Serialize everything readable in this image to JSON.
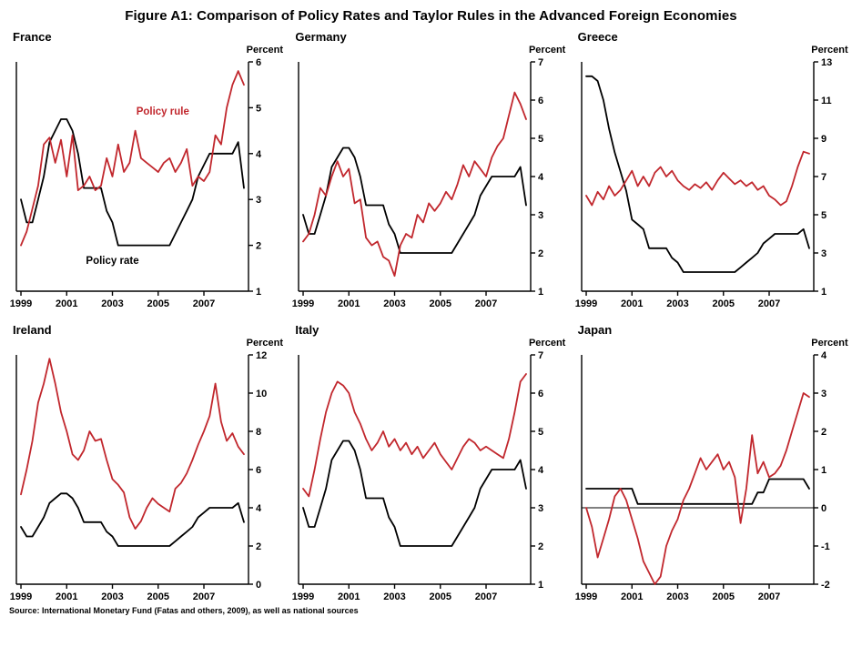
{
  "header": {
    "title": "Figure A1: Comparison of Policy Rates and Taylor Rules in the Advanced Foreign Economies"
  },
  "footer": {
    "source": "Source: International Monetary Fund (Fatas and others, 2009), as well as national sources"
  },
  "colors": {
    "policy_rate": "#000000",
    "policy_rule": "#c1272d"
  },
  "chart_data": [
    {
      "type": "line",
      "title": "France",
      "ylabel": "Percent",
      "ylim": [
        1,
        6
      ],
      "yticks": [
        1,
        2,
        3,
        4,
        5,
        6
      ],
      "xlim": [
        1998.8,
        2008.95
      ],
      "xticks": [
        1999,
        2001,
        2003,
        2005,
        2007
      ],
      "x_start": 1999,
      "x_step": 0.25,
      "series": [
        {
          "name": "Policy rate",
          "color": "#000000",
          "values": [
            3.0,
            2.5,
            2.5,
            3.0,
            3.5,
            4.25,
            4.5,
            4.75,
            4.75,
            4.5,
            4.0,
            3.25,
            3.25,
            3.25,
            3.25,
            2.75,
            2.5,
            2.0,
            2.0,
            2.0,
            2.0,
            2.0,
            2.0,
            2.0,
            2.0,
            2.0,
            2.0,
            2.25,
            2.5,
            2.75,
            3.0,
            3.5,
            3.75,
            4.0,
            4.0,
            4.0,
            4.0,
            4.0,
            4.25,
            3.25
          ]
        },
        {
          "name": "Policy rule",
          "color": "#c1272d",
          "values": [
            2.0,
            2.3,
            2.8,
            3.3,
            4.2,
            4.35,
            3.8,
            4.3,
            3.5,
            4.4,
            3.2,
            3.3,
            3.5,
            3.2,
            3.3,
            3.9,
            3.5,
            4.2,
            3.6,
            3.8,
            4.5,
            3.9,
            3.8,
            3.7,
            3.6,
            3.8,
            3.9,
            3.6,
            3.8,
            4.1,
            3.3,
            3.5,
            3.4,
            3.6,
            4.4,
            4.2,
            5.0,
            5.5,
            5.8,
            5.5
          ]
        }
      ],
      "annotations": [
        {
          "text": "Policy rule",
          "color": "#c1272d",
          "x": 2005.2,
          "y": 4.85
        },
        {
          "text": "Policy rate",
          "color": "#000000",
          "x": 2003.0,
          "y": 1.6
        }
      ]
    },
    {
      "type": "line",
      "title": "Germany",
      "ylabel": "Percent",
      "ylim": [
        1,
        7
      ],
      "yticks": [
        1,
        2,
        3,
        4,
        5,
        6,
        7
      ],
      "xlim": [
        1998.8,
        2008.95
      ],
      "xticks": [
        1999,
        2001,
        2003,
        2005,
        2007
      ],
      "x_start": 1999,
      "x_step": 0.25,
      "series": [
        {
          "name": "Policy rate",
          "color": "#000000",
          "values": [
            3.0,
            2.5,
            2.5,
            3.0,
            3.5,
            4.25,
            4.5,
            4.75,
            4.75,
            4.5,
            4.0,
            3.25,
            3.25,
            3.25,
            3.25,
            2.75,
            2.5,
            2.0,
            2.0,
            2.0,
            2.0,
            2.0,
            2.0,
            2.0,
            2.0,
            2.0,
            2.0,
            2.25,
            2.5,
            2.75,
            3.0,
            3.5,
            3.75,
            4.0,
            4.0,
            4.0,
            4.0,
            4.0,
            4.25,
            3.25
          ]
        },
        {
          "name": "Policy rule",
          "color": "#c1272d",
          "values": [
            2.3,
            2.5,
            3.0,
            3.7,
            3.5,
            4.0,
            4.4,
            4.0,
            4.2,
            3.3,
            3.4,
            2.4,
            2.2,
            2.3,
            1.9,
            1.8,
            1.4,
            2.2,
            2.5,
            2.4,
            3.0,
            2.8,
            3.3,
            3.1,
            3.3,
            3.6,
            3.4,
            3.8,
            4.3,
            4.0,
            4.4,
            4.2,
            4.0,
            4.5,
            4.8,
            5.0,
            5.6,
            6.2,
            5.9,
            5.5
          ]
        }
      ]
    },
    {
      "type": "line",
      "title": "Greece",
      "ylabel": "Percent",
      "ylim": [
        1,
        13
      ],
      "yticks": [
        1,
        3,
        5,
        7,
        9,
        11,
        13
      ],
      "xlim": [
        1998.8,
        2008.95
      ],
      "xticks": [
        1999,
        2001,
        2003,
        2005,
        2007
      ],
      "x_start": 1999,
      "x_step": 0.25,
      "series": [
        {
          "name": "Policy rate",
          "color": "#000000",
          "values": [
            12.25,
            12.25,
            12.0,
            11.0,
            9.5,
            8.25,
            7.25,
            6.25,
            4.75,
            4.5,
            4.25,
            3.25,
            3.25,
            3.25,
            3.25,
            2.75,
            2.5,
            2.0,
            2.0,
            2.0,
            2.0,
            2.0,
            2.0,
            2.0,
            2.0,
            2.0,
            2.0,
            2.25,
            2.5,
            2.75,
            3.0,
            3.5,
            3.75,
            4.0,
            4.0,
            4.0,
            4.0,
            4.0,
            4.25,
            3.25
          ]
        },
        {
          "name": "Policy rule",
          "color": "#c1272d",
          "values": [
            6.0,
            5.5,
            6.2,
            5.8,
            6.5,
            6.0,
            6.3,
            6.8,
            7.3,
            6.5,
            7.0,
            6.5,
            7.2,
            7.5,
            7.0,
            7.3,
            6.8,
            6.5,
            6.3,
            6.6,
            6.4,
            6.7,
            6.3,
            6.8,
            7.2,
            6.9,
            6.6,
            6.8,
            6.5,
            6.7,
            6.3,
            6.5,
            6.0,
            5.8,
            5.5,
            5.7,
            6.5,
            7.5,
            8.3,
            8.2
          ]
        }
      ]
    },
    {
      "type": "line",
      "title": "Ireland",
      "ylabel": "Percent",
      "ylim": [
        0,
        12
      ],
      "yticks": [
        0,
        2,
        4,
        6,
        8,
        10,
        12
      ],
      "xlim": [
        1998.8,
        2008.95
      ],
      "xticks": [
        1999,
        2001,
        2003,
        2005,
        2007
      ],
      "x_start": 1999,
      "x_step": 0.25,
      "series": [
        {
          "name": "Policy rate",
          "color": "#000000",
          "values": [
            3.0,
            2.5,
            2.5,
            3.0,
            3.5,
            4.25,
            4.5,
            4.75,
            4.75,
            4.5,
            4.0,
            3.25,
            3.25,
            3.25,
            3.25,
            2.75,
            2.5,
            2.0,
            2.0,
            2.0,
            2.0,
            2.0,
            2.0,
            2.0,
            2.0,
            2.0,
            2.0,
            2.25,
            2.5,
            2.75,
            3.0,
            3.5,
            3.75,
            4.0,
            4.0,
            4.0,
            4.0,
            4.0,
            4.25,
            3.25
          ]
        },
        {
          "name": "Policy rule",
          "color": "#c1272d",
          "values": [
            4.7,
            6.0,
            7.5,
            9.5,
            10.5,
            11.8,
            10.5,
            9.0,
            8.0,
            6.8,
            6.5,
            7.0,
            8.0,
            7.5,
            7.6,
            6.5,
            5.5,
            5.2,
            4.8,
            3.5,
            2.9,
            3.3,
            4.0,
            4.5,
            4.2,
            4.0,
            3.8,
            5.0,
            5.3,
            5.8,
            6.5,
            7.3,
            8.0,
            8.8,
            10.5,
            8.5,
            7.5,
            7.9,
            7.2,
            6.8
          ]
        }
      ]
    },
    {
      "type": "line",
      "title": "Italy",
      "ylabel": "Percent",
      "ylim": [
        1,
        7
      ],
      "yticks": [
        1,
        2,
        3,
        4,
        5,
        6,
        7
      ],
      "xlim": [
        1998.8,
        2008.95
      ],
      "xticks": [
        1999,
        2001,
        2003,
        2005,
        2007
      ],
      "x_start": 1999,
      "x_step": 0.25,
      "series": [
        {
          "name": "Policy rate",
          "color": "#000000",
          "values": [
            3.0,
            2.5,
            2.5,
            3.0,
            3.5,
            4.25,
            4.5,
            4.75,
            4.75,
            4.5,
            4.0,
            3.25,
            3.25,
            3.25,
            3.25,
            2.75,
            2.5,
            2.0,
            2.0,
            2.0,
            2.0,
            2.0,
            2.0,
            2.0,
            2.0,
            2.0,
            2.0,
            2.25,
            2.5,
            2.75,
            3.0,
            3.5,
            3.75,
            4.0,
            4.0,
            4.0,
            4.0,
            4.0,
            4.25,
            3.5
          ]
        },
        {
          "name": "Policy rule",
          "color": "#c1272d",
          "values": [
            3.5,
            3.3,
            4.0,
            4.8,
            5.5,
            6.0,
            6.3,
            6.2,
            6.0,
            5.5,
            5.2,
            4.8,
            4.5,
            4.7,
            5.0,
            4.6,
            4.8,
            4.5,
            4.7,
            4.4,
            4.6,
            4.3,
            4.5,
            4.7,
            4.4,
            4.2,
            4.0,
            4.3,
            4.6,
            4.8,
            4.7,
            4.5,
            4.6,
            4.5,
            4.4,
            4.3,
            4.8,
            5.5,
            6.3,
            6.5
          ]
        }
      ]
    },
    {
      "type": "line",
      "title": "Japan",
      "ylabel": "Percent",
      "ylim": [
        -2,
        4
      ],
      "yticks": [
        -2,
        -1,
        0,
        1,
        2,
        3,
        4
      ],
      "zero_line": true,
      "xlim": [
        1998.8,
        2008.95
      ],
      "xticks": [
        1999,
        2001,
        2003,
        2005,
        2007
      ],
      "x_start": 1999,
      "x_step": 0.25,
      "series": [
        {
          "name": "Policy rate",
          "color": "#000000",
          "values": [
            0.5,
            0.5,
            0.5,
            0.5,
            0.5,
            0.5,
            0.5,
            0.5,
            0.5,
            0.1,
            0.1,
            0.1,
            0.1,
            0.1,
            0.1,
            0.1,
            0.1,
            0.1,
            0.1,
            0.1,
            0.1,
            0.1,
            0.1,
            0.1,
            0.1,
            0.1,
            0.1,
            0.1,
            0.1,
            0.1,
            0.4,
            0.4,
            0.75,
            0.75,
            0.75,
            0.75,
            0.75,
            0.75,
            0.75,
            0.5
          ]
        },
        {
          "name": "Policy rule",
          "color": "#c1272d",
          "values": [
            0.0,
            -0.5,
            -1.3,
            -0.8,
            -0.3,
            0.3,
            0.5,
            0.2,
            -0.3,
            -0.8,
            -1.4,
            -1.7,
            -2.0,
            -1.8,
            -1.0,
            -0.6,
            -0.3,
            0.2,
            0.5,
            0.9,
            1.3,
            1.0,
            1.2,
            1.4,
            1.0,
            1.2,
            0.8,
            -0.4,
            0.5,
            1.9,
            0.9,
            1.2,
            0.8,
            0.9,
            1.1,
            1.5,
            2.0,
            2.5,
            3.0,
            2.9
          ]
        }
      ]
    }
  ]
}
